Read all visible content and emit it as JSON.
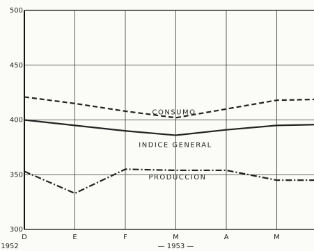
{
  "chart_data": {
    "type": "line",
    "categories": [
      "D",
      "E",
      "F",
      "M",
      "A",
      "M",
      null
    ],
    "series": [
      {
        "name": "CONSUMO",
        "color": "#222222",
        "style": "dashed",
        "values": [
          421,
          415,
          408,
          402,
          410,
          418,
          419
        ]
      },
      {
        "name": "INDICE GENERAL",
        "color": "#222222",
        "style": "solid",
        "values": [
          400,
          395,
          390,
          386,
          391,
          395,
          396
        ]
      },
      {
        "name": "PRODUCCION",
        "color": "#222222",
        "style": "dashdot",
        "values": [
          353,
          333,
          355,
          354,
          354,
          345,
          345
        ]
      }
    ],
    "ylim": [
      300,
      500
    ],
    "yticks": [
      300,
      350,
      400,
      450,
      500
    ],
    "grid": true,
    "annotations": [
      "1952",
      "— 1953 —"
    ]
  }
}
